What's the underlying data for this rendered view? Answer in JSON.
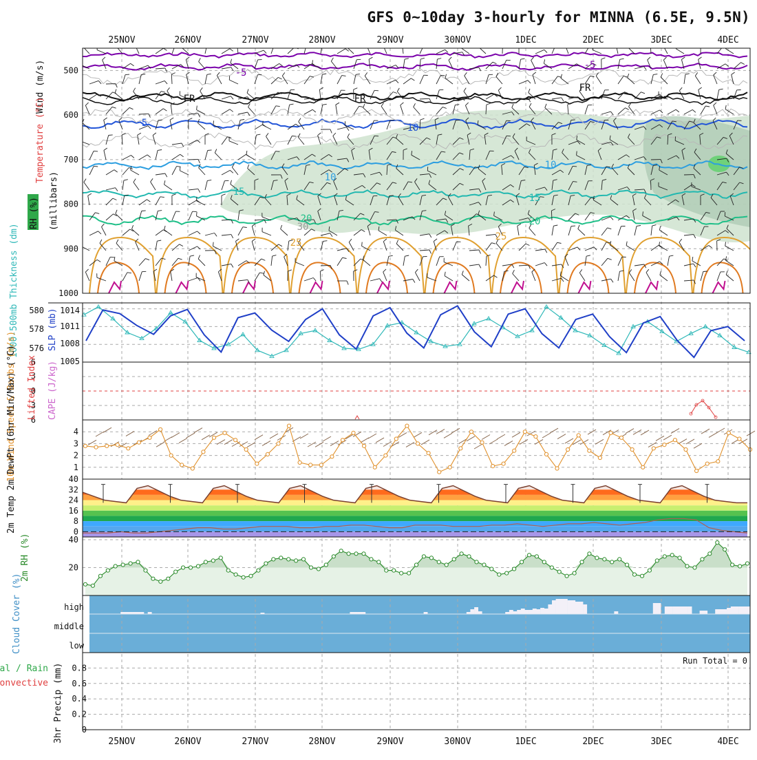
{
  "title": "GFS 0~10day 3-hourly for MINNA (6.5E, 9.5N)",
  "dates": [
    "25NOV",
    "26NOV",
    "27NOV",
    "28NOV",
    "29NOV",
    "30NOV",
    "1DEC",
    "2DEC",
    "3DEC",
    "4DEC"
  ],
  "colors": {
    "grid": "#aaaaaa",
    "rh_fill": "#cfe3cf",
    "temp_line": "#7a00aa",
    "fr_line": "#111111",
    "slp_line": "#1f3fc7",
    "thickness_line": "#2fb8b8",
    "cape_line": "#e04040",
    "wind_speed_line": "#e0902a",
    "barb": "#8a6a50",
    "rh2m_line": "#2a8a2a",
    "rh2m_fill": "#e6f2e6",
    "cloud_bg": "#6aaed8",
    "cloud_bar": "#f3f0f8",
    "temp_max": "#e03b10"
  },
  "chart_data": [
    {
      "panel": "upper-air",
      "type": "line",
      "ylabel": "(millibars)",
      "side_labels": {
        "wind": "Wind (m/s)",
        "temp": "Temperature (°C)",
        "rh": "RH (%)"
      },
      "yticks": [
        "500",
        "600",
        "700",
        "800",
        "900",
        "1000"
      ],
      "ylim": [
        450,
        1000
      ],
      "isotherm_labels": [
        "-5",
        "FR",
        "5",
        "10",
        "15",
        "20",
        "25",
        "30",
        "10"
      ]
    },
    {
      "panel": "slp-thickness",
      "type": "line",
      "ylabel_left": "1000-500mb Thickness (dm)",
      "ylabel_right": "SLP (mb)",
      "yticks_left": [
        "580",
        "578",
        "576"
      ],
      "yticks_right": [
        "1014",
        "1011",
        "1008",
        "1005"
      ],
      "series": [
        {
          "name": "SLP (mb)",
          "values": [
            1008.6,
            1013.8,
            1013.2,
            1011.2,
            1009.7,
            1012.8,
            1013.9,
            1009.6,
            1006.7,
            1012.5,
            1013.3,
            1010.4,
            1008.5,
            1012.2,
            1014.0,
            1009.6,
            1007.2,
            1012.8,
            1014.2,
            1009.9,
            1007.4,
            1013.0,
            1014.5,
            1010.1,
            1007.6,
            1013.1,
            1014.0,
            1009.8,
            1007.4,
            1012.2,
            1013.1,
            1009.3,
            1006.6,
            1011.6,
            1012.7,
            1008.7,
            1005.8,
            1010.3,
            1011.0,
            1008.6
          ]
        },
        {
          "name": "Thickness (dm)",
          "values": [
            579.8,
            580.6,
            579.4,
            578.0,
            577.4,
            578.4,
            580.0,
            579.1,
            577.2,
            576.4,
            576.8,
            577.8,
            576.2,
            575.6,
            576.2,
            577.9,
            578.2,
            577.2,
            576.4,
            576.3,
            576.8,
            578.7,
            579.0,
            578.0,
            577.1,
            576.6,
            576.8,
            578.9,
            579.4,
            578.5,
            577.6,
            578.2,
            580.6,
            579.5,
            578.2,
            577.7,
            576.7,
            575.9,
            578.6,
            579.1,
            578.1,
            577.1,
            577.9,
            578.6,
            577.7,
            576.5,
            576.0
          ]
        }
      ]
    },
    {
      "panel": "cape-li",
      "type": "line",
      "ylabel_left": "Lifted Index",
      "ylabel_right": "CAPE (J/kg)",
      "yticks": [
        "6",
        "3",
        "0",
        "3",
        "6"
      ],
      "series": [
        {
          "name": "Lifted Index",
          "values": [
            0
          ]
        }
      ]
    },
    {
      "panel": "wind10m",
      "type": "line",
      "ylabel": "10m Wind Speed & Barbs (m/s)",
      "yticks": [
        "4",
        "3",
        "2",
        "1"
      ],
      "series": [
        {
          "name": "10m Wind Speed",
          "values": [
            2.8,
            2.7,
            2.8,
            2.9,
            2.6,
            3.1,
            3.5,
            4.2,
            2.0,
            1.2,
            0.9,
            2.3,
            3.5,
            3.9,
            3.3,
            2.5,
            1.3,
            2.1,
            3.0,
            4.5,
            1.4,
            1.2,
            1.2,
            1.9,
            3.3,
            3.9,
            2.8,
            1.0,
            2.0,
            3.4,
            4.5,
            3.0,
            2.2,
            0.6,
            1.0,
            2.6,
            4.0,
            3.1,
            1.1,
            1.3,
            2.4,
            4.0,
            3.6,
            2.1,
            0.9,
            2.5,
            3.7,
            2.4,
            1.8,
            3.9,
            3.5,
            2.5,
            1.0,
            2.6,
            2.9,
            3.3,
            2.5,
            0.7,
            1.3,
            1.5,
            3.9,
            3.4,
            2.5
          ]
        }
      ]
    },
    {
      "panel": "temp2m",
      "type": "area",
      "ylabel": "2m Temp 2m DewPt (6hr Min/Max) (°C)",
      "yticks": [
        "40",
        "32",
        "24",
        "16",
        "8",
        "0"
      ],
      "series": [
        {
          "name": "2m Temp",
          "values": [
            30,
            27,
            24,
            23,
            22,
            33,
            35,
            31,
            27,
            24,
            23,
            22,
            33,
            35,
            31,
            27,
            24,
            23,
            22,
            33,
            35,
            31,
            27,
            24,
            23,
            22,
            33,
            35,
            31,
            27,
            24,
            23,
            22,
            33,
            35,
            31,
            27,
            24,
            23,
            22,
            33,
            35,
            31,
            27,
            24,
            23,
            22,
            33,
            35,
            31,
            27,
            24,
            23,
            22,
            33,
            35,
            31,
            27,
            24,
            23,
            22,
            22
          ]
        },
        {
          "name": "2m DewPt",
          "values": [
            -1,
            -1,
            -1,
            0,
            -1,
            -1,
            0,
            1,
            2,
            3,
            3,
            2,
            2,
            3,
            4,
            4,
            4,
            3,
            3,
            4,
            4,
            5,
            5,
            4,
            3,
            3,
            5,
            5,
            5,
            4,
            4,
            4,
            5,
            5,
            6,
            5,
            4,
            5,
            6,
            6,
            7,
            6,
            5,
            6,
            7,
            9,
            10,
            10,
            9,
            3,
            1,
            0,
            -1
          ]
        }
      ]
    },
    {
      "panel": "rh2m",
      "type": "area",
      "ylabel": "2m RH (%)",
      "yticks": [
        "40",
        "20"
      ],
      "series": [
        {
          "name": "2m RH",
          "values": [
            8,
            7,
            14,
            18,
            21,
            22,
            23,
            24,
            18,
            12,
            10,
            12,
            17,
            20,
            20,
            21,
            24,
            25,
            27,
            18,
            15,
            13,
            14,
            18,
            23,
            26,
            27,
            26,
            25,
            26,
            20,
            19,
            22,
            28,
            32,
            30,
            30,
            30,
            26,
            24,
            18,
            18,
            16,
            16,
            22,
            28,
            27,
            24,
            22,
            26,
            30,
            28,
            24,
            22,
            19,
            15,
            16,
            19,
            24,
            29,
            28,
            24,
            20,
            17,
            14,
            16,
            24,
            30,
            27,
            26,
            24,
            26,
            22,
            15,
            14,
            18,
            25,
            28,
            29,
            27,
            21,
            20,
            26,
            30,
            38,
            33,
            22,
            21,
            23
          ]
        }
      ]
    },
    {
      "panel": "cloud",
      "type": "bar",
      "ylabel": "Cloud Cover (%)",
      "yticks": [
        "high",
        "middle",
        "low"
      ],
      "series": [
        {
          "name": "high",
          "values": [
            0,
            0,
            0,
            0,
            0,
            0,
            0,
            0,
            3,
            3,
            3,
            3,
            3,
            3,
            0,
            3,
            0,
            0,
            0,
            0,
            0,
            0,
            0,
            0,
            0,
            0,
            0,
            0,
            0,
            0,
            0,
            0,
            0,
            0,
            0,
            0,
            0,
            0,
            0,
            0,
            0,
            0,
            0,
            0,
            2,
            0,
            0,
            0,
            0,
            0,
            0,
            0,
            0,
            0,
            0,
            0,
            0,
            0,
            0,
            0,
            0,
            0,
            0,
            0,
            0,
            0,
            0,
            3,
            3,
            3,
            3,
            0,
            0,
            0,
            0,
            0,
            0,
            0,
            0,
            0,
            0,
            0,
            0,
            0,
            0,
            0,
            3,
            0,
            0,
            0,
            0,
            0,
            0,
            0,
            0,
            0,
            0,
            3,
            7,
            10,
            4,
            0,
            0,
            0,
            0,
            0,
            0,
            3,
            6,
            4,
            6,
            8,
            6,
            6,
            8,
            7,
            9,
            8,
            14,
            20,
            22,
            22,
            22,
            20,
            20,
            18,
            18,
            14,
            0,
            0,
            0,
            0,
            0,
            0,
            0,
            4,
            0,
            0,
            0,
            0,
            0,
            0,
            0,
            0,
            0,
            16,
            16,
            0,
            11,
            11,
            11,
            11,
            11,
            11,
            11,
            0,
            0,
            5,
            5,
            0,
            0,
            7,
            7,
            7,
            9,
            11,
            11,
            11,
            11,
            11
          ]
        }
      ]
    },
    {
      "panel": "precip",
      "type": "bar",
      "ylabel": "3hr Precip (mm)",
      "yticks": [
        "0.8",
        "0.6",
        "0.4",
        "0.2",
        "0"
      ],
      "ylim": [
        0,
        1
      ],
      "legend": {
        "total": "Total / Rain",
        "conv": "Convective"
      },
      "run_total": "Run Total = 0",
      "series": [
        {
          "name": "3hr Precip",
          "values": [
            0
          ]
        }
      ]
    }
  ]
}
